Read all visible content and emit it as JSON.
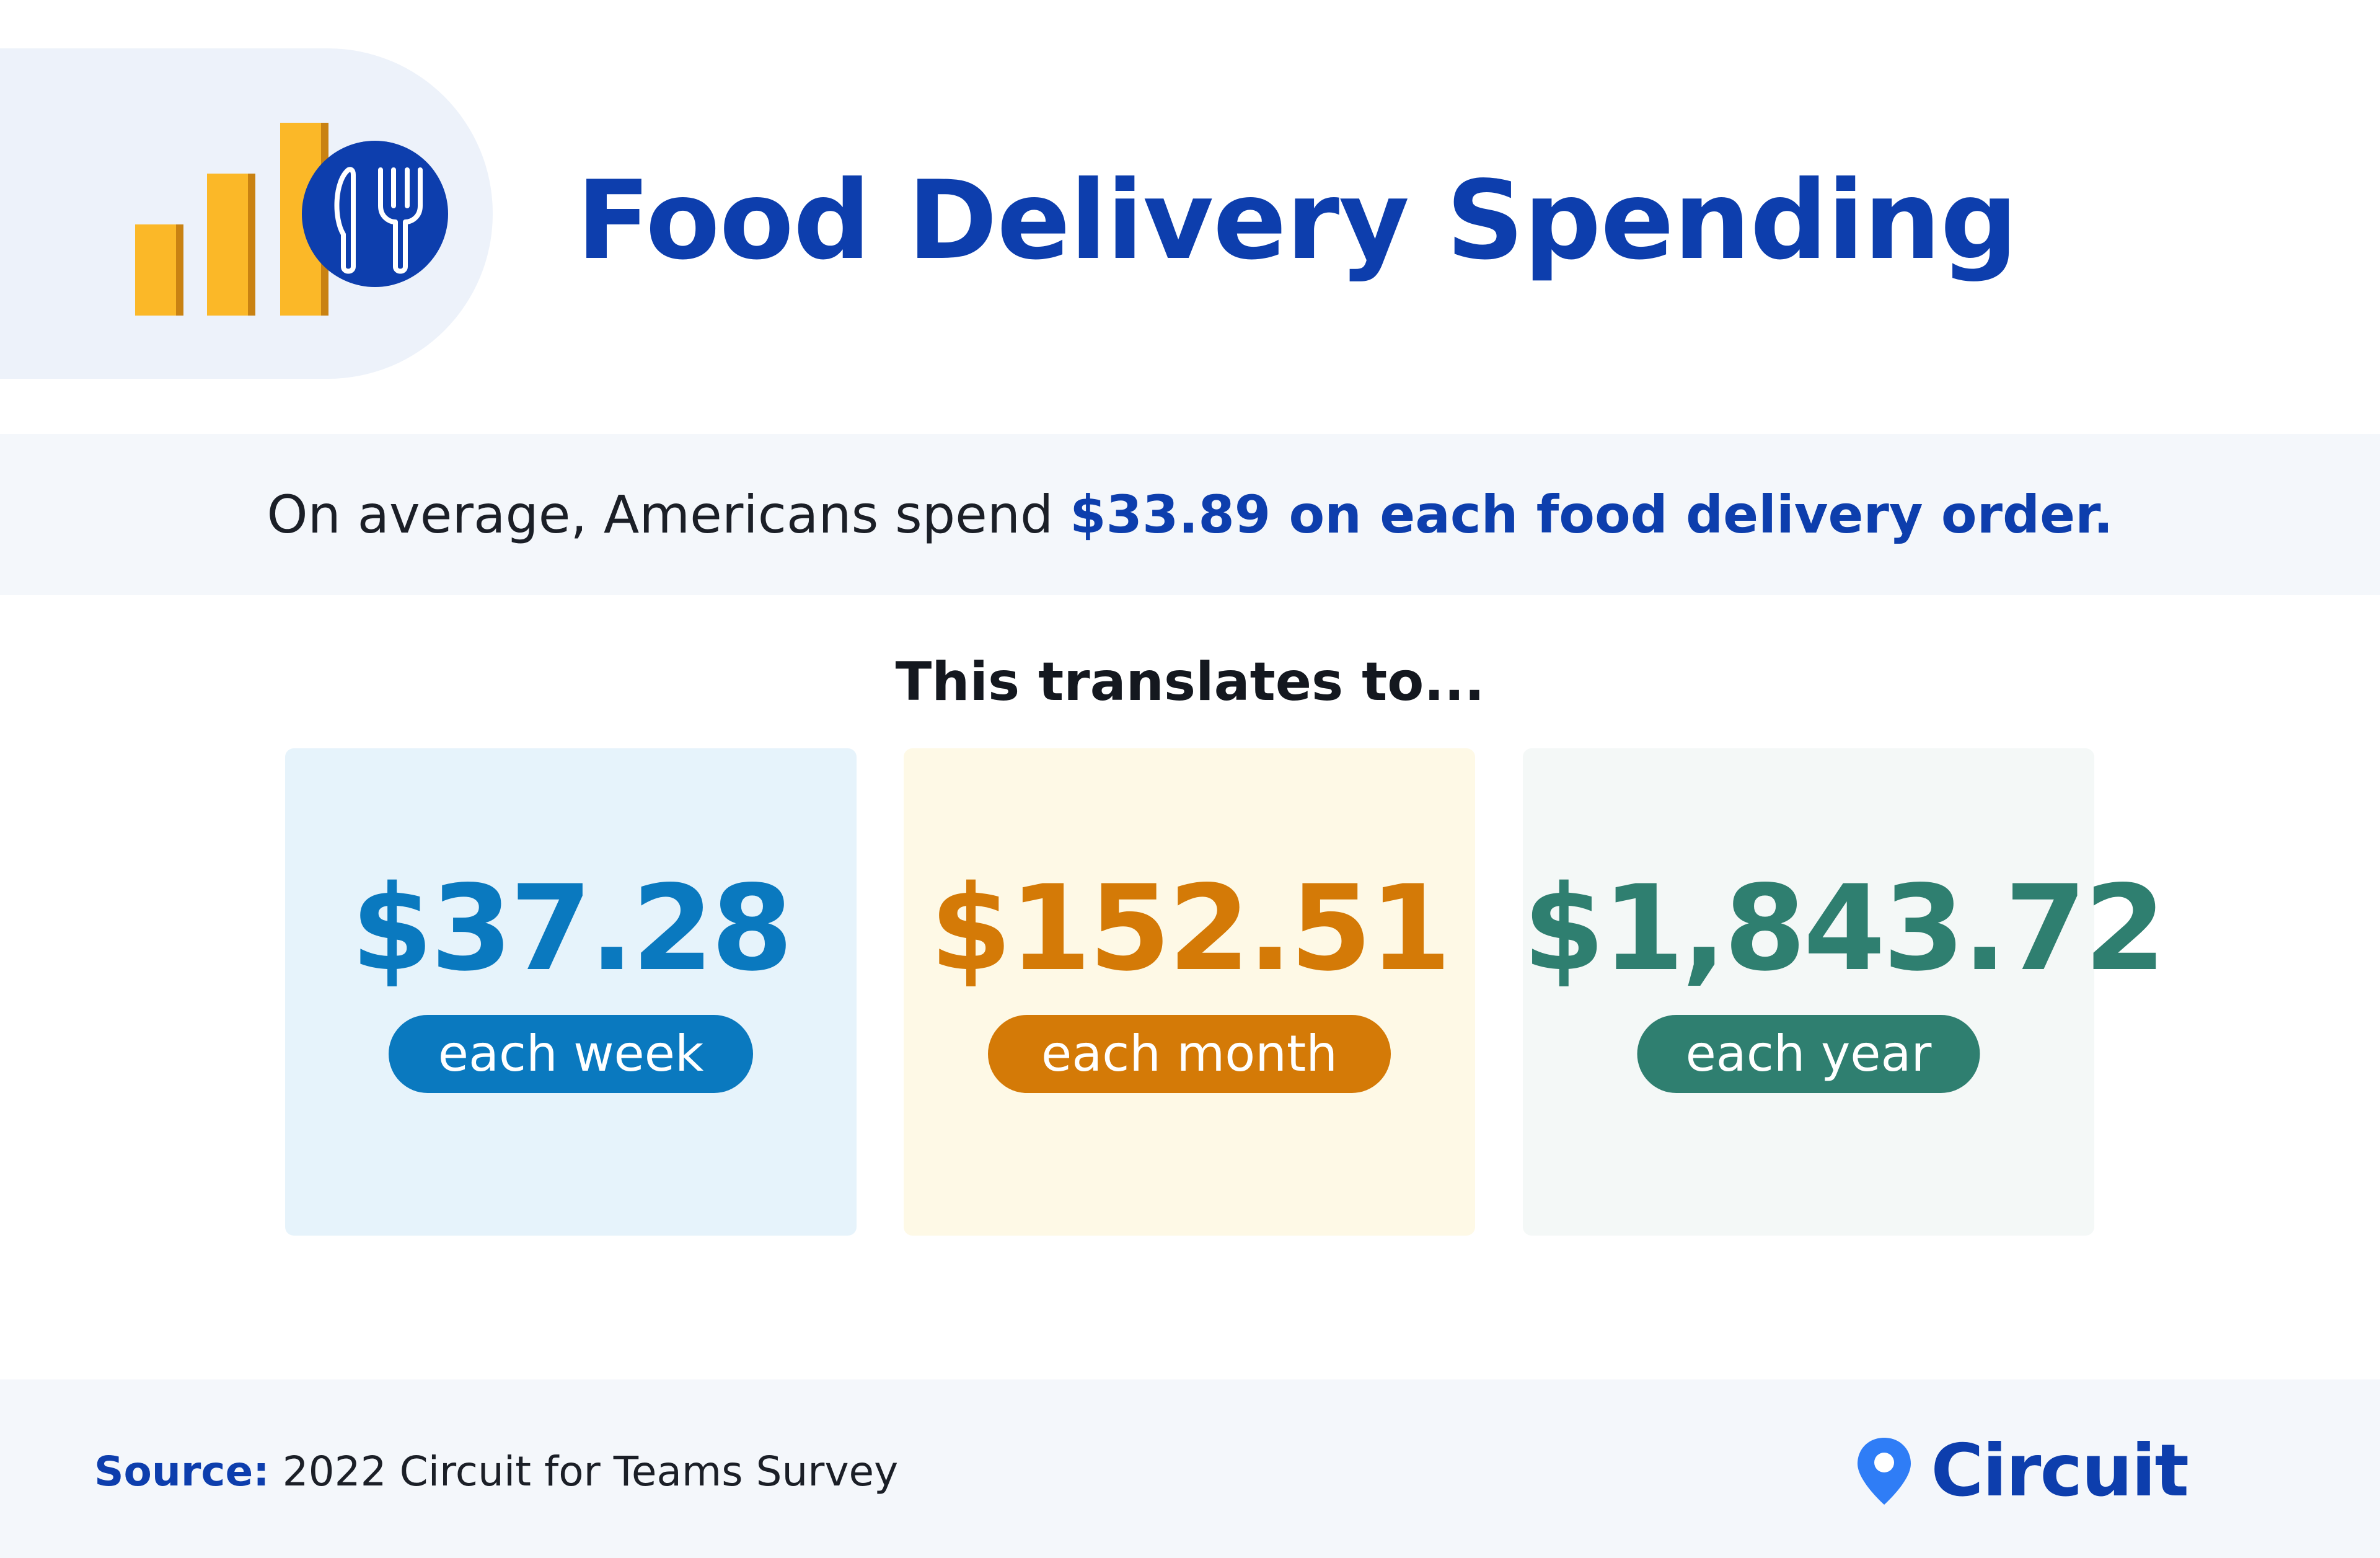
{
  "header": {
    "icon": "bar-chart-with-fork-and-knife-icon",
    "title": "Food Delivery Spending"
  },
  "summary": {
    "prefix": "On average, Americans spend ",
    "highlight": "$33.89 on each food delivery order."
  },
  "subheading": "This translates to...",
  "cards": [
    {
      "amount": "$37.28",
      "period": "each week",
      "color": "#0a79bf"
    },
    {
      "amount": "$152.51",
      "period": "each month",
      "color": "#d47a07"
    },
    {
      "amount": "$1,843.72",
      "period": "each year",
      "color": "#2f7f70"
    }
  ],
  "footer": {
    "source_label": "Source:",
    "source_text": " 2022 Circuit for Teams Survey",
    "brand": "Circuit",
    "brand_icon": "location-pin-icon"
  },
  "colors": {
    "brand_blue": "#0d3ead",
    "bar_yellow": "#fbb828"
  }
}
